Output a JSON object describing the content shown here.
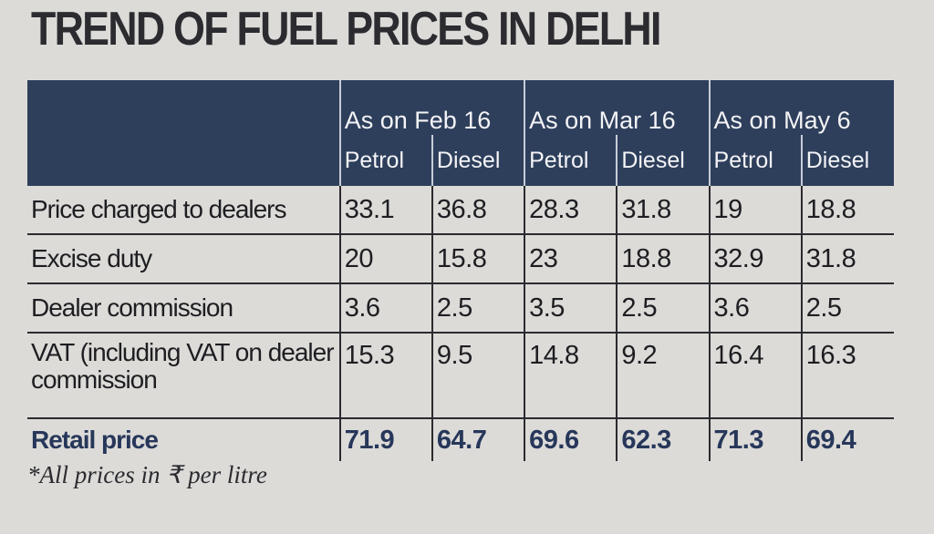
{
  "title": "TREND OF FUEL PRICES IN DELHI",
  "periods": [
    "As on Feb 16",
    "As on Mar 16",
    "As on May 6"
  ],
  "fuel_types": [
    "Petrol",
    "Diesel",
    "Petrol",
    "Diesel",
    "Petrol",
    "Diesel"
  ],
  "rows": [
    {
      "label": "Price charged to dealers",
      "values": [
        "33.1",
        "36.8",
        "28.3",
        "31.8",
        "19",
        "18.8"
      ]
    },
    {
      "label": "Excise duty",
      "values": [
        "20",
        "15.8",
        "23",
        "18.8",
        "32.9",
        "31.8"
      ]
    },
    {
      "label": "Dealer commission",
      "values": [
        "3.6",
        "2.5",
        "3.5",
        "2.5",
        "3.6",
        "2.5"
      ]
    },
    {
      "label": "VAT (including VAT on dealer commission",
      "values": [
        "15.3",
        "9.5",
        "14.8",
        "9.2",
        "16.4",
        "16.3"
      ]
    },
    {
      "label": "Retail price",
      "values": [
        "71.9",
        "64.7",
        "69.6",
        "62.3",
        "71.3",
        "69.4"
      ]
    }
  ],
  "footnote": "*All prices in ₹ per litre",
  "colors": {
    "header_bg": "#2e3f5c",
    "accent_text": "#27375a",
    "paper": "#dcdbd8"
  }
}
